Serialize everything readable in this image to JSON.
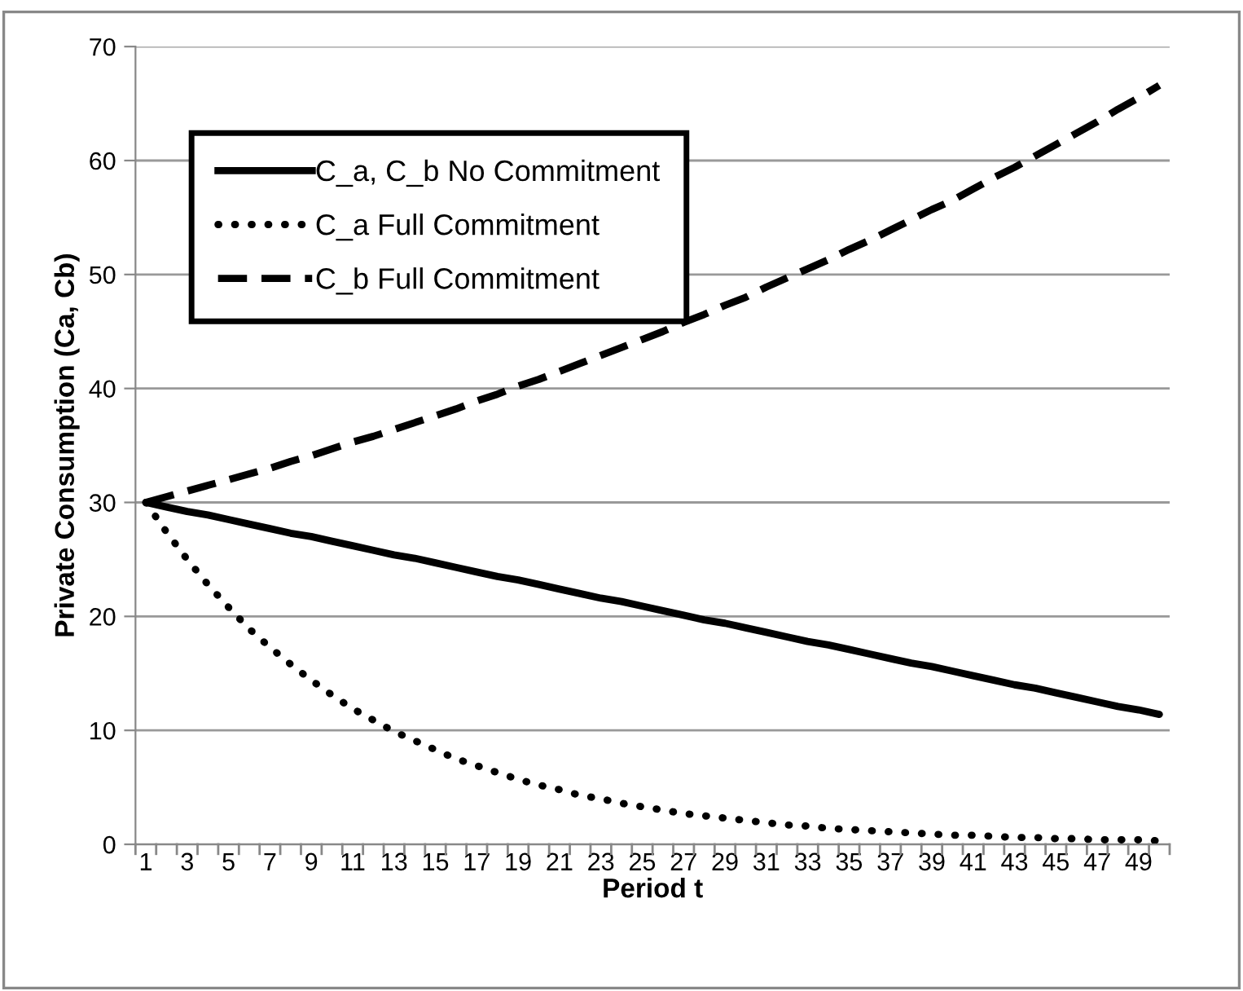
{
  "chart_data": {
    "type": "line",
    "xlabel": "Period t",
    "ylabel": "Private Consumption (Ca, Cb)",
    "categories": [
      "1",
      null,
      "3",
      null,
      "5",
      null,
      "7",
      null,
      "9",
      null,
      "11",
      null,
      "13",
      null,
      "15",
      null,
      "17",
      null,
      "19",
      null,
      "21",
      null,
      "23",
      null,
      "25",
      null,
      "27",
      null,
      "29",
      null,
      "31",
      null,
      "33",
      null,
      "35",
      null,
      "37",
      null,
      "39",
      null,
      "41",
      null,
      "43",
      null,
      "45",
      null,
      "47",
      null,
      "49",
      null
    ],
    "series": [
      {
        "name": "C_a, C_b No Commitment",
        "color": "#000000",
        "line_style": "solid",
        "values": [
          30,
          29.6,
          29.2,
          28.9,
          28.5,
          28.1,
          27.7,
          27.3,
          27.0,
          26.6,
          26.2,
          25.8,
          25.4,
          25.1,
          24.7,
          24.3,
          23.9,
          23.5,
          23.2,
          22.8,
          22.4,
          22.0,
          21.6,
          21.3,
          20.9,
          20.5,
          20.1,
          19.7,
          19.4,
          19.0,
          18.6,
          18.2,
          17.8,
          17.5,
          17.1,
          16.7,
          16.3,
          15.9,
          15.6,
          15.2,
          14.8,
          14.4,
          14.0,
          13.7,
          13.3,
          12.9,
          12.5,
          12.1,
          11.8,
          11.4
        ]
      },
      {
        "name": "C_a Full Commitment",
        "color": "#000000",
        "line_style": "dotted",
        "values": [
          30,
          27.4,
          25.0,
          22.8,
          20.8,
          18.9,
          17.3,
          15.8,
          14.4,
          13.1,
          11.9,
          10.9,
          9.9,
          9.1,
          8.3,
          7.5,
          6.9,
          6.3,
          5.7,
          5.2,
          4.8,
          4.3,
          4.0,
          3.6,
          3.3,
          3.0,
          2.7,
          2.5,
          2.3,
          2.1,
          1.9,
          1.7,
          1.6,
          1.4,
          1.3,
          1.2,
          1.1,
          1.0,
          0.9,
          0.8,
          0.8,
          0.7,
          0.6,
          0.6,
          0.5,
          0.5,
          0.4,
          0.4,
          0.4,
          0.3
        ]
      },
      {
        "name": "C_b Full Commitment",
        "color": "#000000",
        "line_style": "dashed",
        "values": [
          30,
          30.5,
          31.0,
          31.5,
          32.0,
          32.5,
          33.0,
          33.6,
          34.1,
          34.7,
          35.3,
          35.8,
          36.4,
          37.0,
          37.6,
          38.2,
          38.9,
          39.5,
          40.2,
          40.8,
          41.5,
          42.2,
          42.9,
          43.6,
          44.3,
          45.0,
          45.8,
          46.5,
          47.3,
          48.0,
          48.9,
          49.7,
          50.5,
          51.3,
          52.2,
          53.0,
          53.9,
          54.8,
          55.7,
          56.5,
          57.5,
          58.5,
          59.4,
          60.4,
          61.4,
          62.4,
          63.4,
          64.5,
          65.5,
          66.6
        ]
      }
    ],
    "ylim": [
      0,
      70
    ],
    "yticks": [
      0,
      10,
      20,
      30,
      40,
      50,
      60,
      70
    ],
    "grid": "y",
    "legend": "top left",
    "marker": "none"
  }
}
